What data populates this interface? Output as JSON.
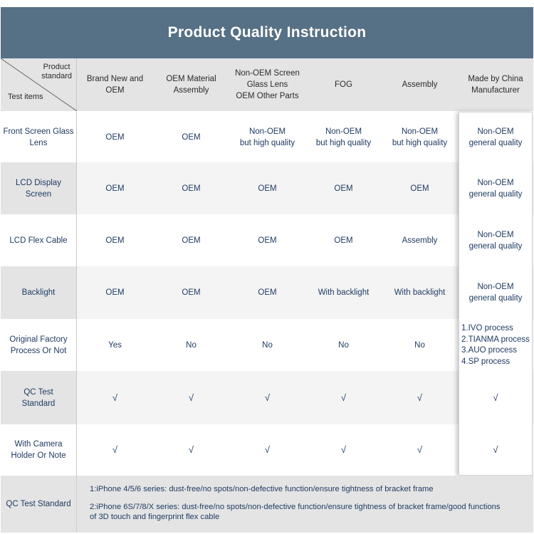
{
  "title": "Product Quality Instruction",
  "corner": {
    "top": "Product\nstandard",
    "bottom": "Test items"
  },
  "columns": [
    "Brand New and\nOEM",
    "OEM Material\nAssembly",
    "Non-OEM Screen\nGlass Lens\nOEM Other Parts",
    "FOG",
    "Assembly",
    "Made by China\nManufacturer"
  ],
  "rows": [
    {
      "label": "Front Screen Glass\nLens",
      "cells": [
        "OEM",
        "OEM",
        "Non-OEM\nbut high quality",
        "Non-OEM\nbut high quality",
        "Non-OEM\nbut high quality",
        "Non-OEM\ngeneral quality"
      ]
    },
    {
      "label": "LCD Display\nScreen",
      "cells": [
        "OEM",
        "OEM",
        "OEM",
        "OEM",
        "OEM",
        "Non-OEM\ngeneral quality"
      ]
    },
    {
      "label": "LCD Flex Cable",
      "cells": [
        "OEM",
        "OEM",
        "OEM",
        "OEM",
        "Assembly",
        "Non-OEM\ngeneral quality"
      ]
    },
    {
      "label": "Backlight",
      "cells": [
        "OEM",
        "OEM",
        "OEM",
        "With backlight",
        "With backlight",
        "Non-OEM\ngeneral quality"
      ]
    },
    {
      "label": "Original Factory\nProcess Or Not",
      "cells": [
        "Yes",
        "No",
        "No",
        "No",
        "No"
      ]
    },
    {
      "label": "QC Test\nStandard",
      "cells": [
        "√",
        "√",
        "√",
        "√",
        "√",
        "√"
      ]
    },
    {
      "label": "With Camera\nHolder Or Note",
      "cells": [
        "√",
        "√",
        "√",
        "√",
        "√",
        "√"
      ]
    }
  ],
  "process_list": [
    "1.IVO process",
    "2.TIANMA process",
    "3.AUO process",
    "4.SP process"
  ],
  "footer": {
    "label": "QC Test Standard",
    "line1": "1:iPhone 4/5/6 series: dust-free/no spots/non-defective function/ensure tightness of bracket frame",
    "line2": "2:iPhone 6S/7/8/X series: dust-free/no spots/non-defective function/ensure tightness of bracket frame/good functions\n   of 3D touch and fingerprint flex cable"
  }
}
